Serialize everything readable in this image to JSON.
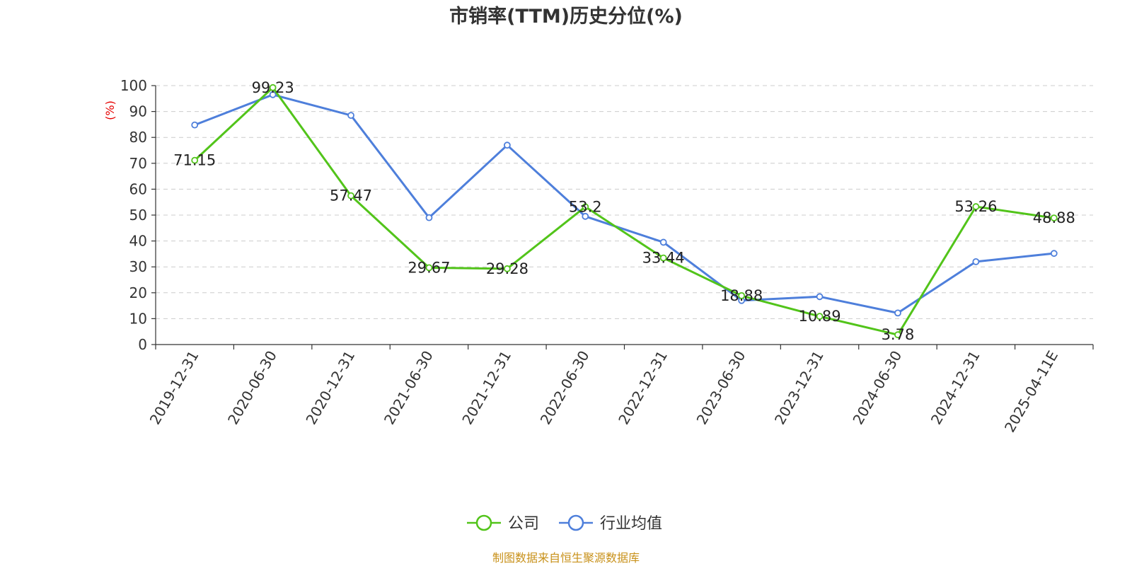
{
  "chart_data": {
    "type": "line",
    "title": "市销率(TTM)历史分位(%)",
    "ylabel": "(%)",
    "xlabel": "",
    "ylim": [
      0,
      100
    ],
    "yticks": [
      0,
      10,
      20,
      30,
      40,
      50,
      60,
      70,
      80,
      90,
      100
    ],
    "grid": true,
    "legend_position": "bottom-center",
    "categories": [
      "2019-12-31",
      "2020-06-30",
      "2020-12-31",
      "2021-06-30",
      "2021-12-31",
      "2022-06-30",
      "2022-12-31",
      "2023-06-30",
      "2023-12-31",
      "2024-06-30",
      "2024-12-31",
      "2025-04-11E"
    ],
    "series": [
      {
        "name": "公司",
        "color": "#52c41a",
        "values": [
          71.15,
          99.23,
          57.47,
          29.67,
          29.28,
          53.2,
          33.44,
          18.88,
          10.89,
          3.78,
          53.26,
          48.88
        ],
        "labels": [
          "71.15",
          "99.23",
          "57.47",
          "29.67",
          "29.28",
          "53.2",
          "33.44",
          "18.88",
          "10.89",
          "3.78",
          "53.26",
          "48.88"
        ]
      },
      {
        "name": "行业均值",
        "color": "#4e7fdb",
        "values": [
          84.8,
          96.5,
          88.5,
          49.0,
          77.0,
          49.5,
          39.5,
          17.0,
          18.5,
          12.2,
          32.0,
          35.2
        ]
      }
    ],
    "source": "制图数据来自恒生聚源数据库"
  }
}
